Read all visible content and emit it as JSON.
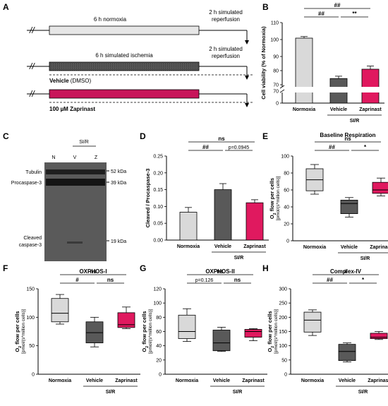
{
  "colors": {
    "normoxia": "#d9d9d9",
    "vehicle": "#595959",
    "zaprinast": "#e0195f"
  },
  "panel_a": {
    "letter": "A",
    "row1": {
      "left": "6 h normoxia",
      "right1": "2 h simulated",
      "right2": "reperfusion"
    },
    "row2": {
      "left": "6 h simulated ischemia",
      "right1": "2 h simulated",
      "right2": "reperfusion",
      "caption_bold": "Vehicle",
      "caption_rest": " (DMSO)"
    },
    "row3": {
      "caption": "100 µM Zaprinast"
    }
  },
  "panel_c": {
    "letter": "C",
    "group": "SI/R",
    "lanes": [
      "N",
      "V",
      "Z"
    ],
    "left_labels": [
      "Tubulin",
      "Procaspase-3",
      "Cleaved",
      "caspase-3"
    ],
    "markers": [
      "52 kDa",
      "39 kDa",
      "19 kDa"
    ]
  },
  "chart_data": [
    {
      "panel": "B",
      "type": "bar",
      "categories": [
        "Normoxia",
        "Vehicle",
        "Zaprinast"
      ],
      "values": [
        100,
        74,
        80
      ],
      "errors": [
        1,
        1.5,
        2
      ],
      "ylabel": "Cell viability (% of Normoxia)",
      "yticks": [
        "0",
        "70",
        "70",
        "80",
        "90",
        "100",
        "110"
      ],
      "ylim": [
        0,
        110
      ],
      "axis_break": true,
      "group_label": "SI/R",
      "significance": [
        {
          "from": 0,
          "to": 2,
          "text": "##"
        },
        {
          "from": 0,
          "to": 1,
          "text": "##"
        },
        {
          "from": 1,
          "to": 2,
          "text": "**"
        }
      ]
    },
    {
      "panel": "D",
      "type": "bar",
      "categories": [
        "Normoxia",
        "Vehicle",
        "Zaprinast"
      ],
      "values": [
        0.083,
        0.15,
        0.111
      ],
      "errors": [
        0.014,
        0.018,
        0.009
      ],
      "ylabel": "Cleaved / Procaspase-3",
      "yticks": [
        "0.00",
        "0.05",
        "0.10",
        "0.15",
        "0.20",
        "0.25"
      ],
      "ylim": [
        0,
        0.25
      ],
      "group_label": "SI/R",
      "significance": [
        {
          "from": 0,
          "to": 2,
          "text": "ns"
        },
        {
          "from": 0,
          "to": 1,
          "text": "##"
        },
        {
          "from": 1,
          "to": 2,
          "text": "p=0.0945"
        }
      ]
    },
    {
      "panel": "E",
      "type": "box",
      "title": "Baseline Respiration",
      "categories": [
        "Normoxia",
        "Vehicle",
        "Zaprinast"
      ],
      "boxes": [
        {
          "min": 55,
          "q1": 59,
          "median": 72,
          "q3": 85,
          "max": 90
        },
        {
          "min": 28,
          "q1": 32,
          "median": 44,
          "q3": 48,
          "max": 51
        },
        {
          "min": 53,
          "q1": 56,
          "median": 60,
          "q3": 69,
          "max": 74
        }
      ],
      "ylabel": "O2 flow per cells [pmol/(s*million cells)]",
      "yticks": [
        "0",
        "20",
        "40",
        "60",
        "80",
        "100"
      ],
      "ylim": [
        0,
        100
      ],
      "group_label": "SI/R",
      "significance": [
        {
          "from": 0,
          "to": 2,
          "text": "ns"
        },
        {
          "from": 0,
          "to": 1,
          "text": "##"
        },
        {
          "from": 1,
          "to": 2,
          "text": "*"
        }
      ]
    },
    {
      "panel": "F",
      "type": "box",
      "title": "OXPHOS-I",
      "categories": [
        "Normoxia",
        "Vehicle",
        "Zaprinast"
      ],
      "boxes": [
        {
          "min": 88,
          "q1": 92,
          "median": 107,
          "q3": 133,
          "max": 140
        },
        {
          "min": 48,
          "q1": 55,
          "median": 73,
          "q3": 92,
          "max": 100
        },
        {
          "min": 80,
          "q1": 82,
          "median": 87,
          "q3": 108,
          "max": 118
        }
      ],
      "ylabel": "O2 flow per cells [pmol/(s*million cells)]",
      "yticks": [
        "0",
        "50",
        "100",
        "150"
      ],
      "ylim": [
        0,
        150
      ],
      "group_label": "SI/R",
      "significance": [
        {
          "from": 0,
          "to": 2,
          "text": "ns"
        },
        {
          "from": 0,
          "to": 1,
          "text": "#"
        },
        {
          "from": 1,
          "to": 2,
          "text": "ns"
        }
      ]
    },
    {
      "panel": "G",
      "type": "box",
      "title": "OXPHOS-II",
      "categories": [
        "Normoxia",
        "Vehicle",
        "Zaprinast"
      ],
      "boxes": [
        {
          "min": 46,
          "q1": 50,
          "median": 60,
          "q3": 83,
          "max": 92
        },
        {
          "min": 32,
          "q1": 33,
          "median": 44,
          "q3": 62,
          "max": 66
        },
        {
          "min": 47,
          "q1": 52,
          "median": 60,
          "q3": 63,
          "max": 64
        }
      ],
      "ylabel": "O2 flow per cells [pmol/(s*million cells)]",
      "yticks": [
        "0",
        "20",
        "40",
        "60",
        "80",
        "100",
        "120"
      ],
      "ylim": [
        0,
        120
      ],
      "group_label": "SI/R",
      "significance": [
        {
          "from": 0,
          "to": 2,
          "text": "ns"
        },
        {
          "from": 0,
          "to": 1,
          "text": "p=0.126"
        },
        {
          "from": 1,
          "to": 2,
          "text": "ns"
        }
      ]
    },
    {
      "panel": "H",
      "type": "box",
      "title": "Complex-IV",
      "categories": [
        "Normoxia",
        "Vehicle",
        "Zaprinast"
      ],
      "boxes": [
        {
          "min": 136,
          "q1": 148,
          "median": 190,
          "q3": 218,
          "max": 226
        },
        {
          "min": 43,
          "q1": 48,
          "median": 80,
          "q3": 105,
          "max": 110
        },
        {
          "min": 122,
          "q1": 125,
          "median": 130,
          "q3": 144,
          "max": 150
        }
      ],
      "ylabel": "O2 flow per cells [pmol/(s*million cells)]",
      "yticks": [
        "0",
        "50",
        "100",
        "150",
        "200",
        "250",
        "300"
      ],
      "ylim": [
        0,
        300
      ],
      "group_label": "SI/R",
      "significance": [
        {
          "from": 0,
          "to": 2,
          "text": "#"
        },
        {
          "from": 0,
          "to": 1,
          "text": "##"
        },
        {
          "from": 1,
          "to": 2,
          "text": "*"
        }
      ]
    }
  ]
}
